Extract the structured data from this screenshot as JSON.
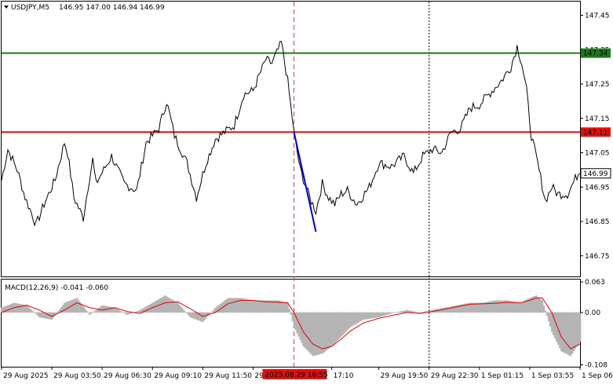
{
  "header": {
    "symbol_text": "USDJPY,M5",
    "ohlc_text": "146.95 147.00 146.94 146.99",
    "indicator_text": "MACD(12,26,9) -0.041 -0.060"
  },
  "colors": {
    "price": "#000000",
    "h_line_green": "#1a7a1a",
    "h_line_red": "#e01010",
    "v_line_red": "#d04040",
    "projection": "#0000cc",
    "histogram": "#b4b4b4",
    "signal": "#e00000",
    "current_tag_bg": "#ffffff"
  },
  "chart_data": [
    {
      "type": "line",
      "name_text": "USDJPY,M5",
      "ylim": [
        146.69,
        147.49
      ],
      "y_ticks": [
        "147.45",
        "147.35",
        "147.25",
        "147.15",
        "147.05",
        "146.95",
        "146.85",
        "146.75"
      ],
      "y_tick_values": [
        147.45,
        147.35,
        147.25,
        147.15,
        147.05,
        146.95,
        146.85,
        146.75
      ],
      "x_tick_labels": [
        "29 Aug 2025",
        "29 Aug 03:50",
        "29 Aug 06:30",
        "29 Aug 09:10",
        "29 Aug 11:50",
        "29 Aug",
        "17:10",
        "29 Aug 19:50",
        "29 Aug 22:30",
        "1 Sep 01:15",
        "1 Sep 03:55",
        "1 Sep 06:35"
      ],
      "x_tick_index": [
        0,
        32,
        64,
        96,
        128,
        160,
        210,
        240,
        272,
        304,
        336,
        368
      ],
      "cursor_index": 186,
      "cursor_label": "2025.08.29 16:55",
      "dotted_index": 272,
      "levels": [
        {
          "label": "147.34",
          "value": 147.34,
          "kind": "green"
        },
        {
          "label": "147.11",
          "value": 147.11,
          "kind": "red"
        }
      ],
      "current": {
        "label": "146.99",
        "value": 146.99
      },
      "projection": {
        "x": [
          186,
          200
        ],
        "y": [
          147.11,
          146.82
        ]
      },
      "anchor_x": [
        0,
        4,
        10,
        15,
        22,
        27,
        34,
        40,
        42,
        46,
        52,
        56,
        58,
        60,
        70,
        78,
        86,
        92,
        100,
        105,
        110,
        118,
        124,
        130,
        136,
        142,
        148,
        154,
        160,
        168,
        172,
        178,
        182,
        186,
        190,
        196,
        200,
        204,
        208,
        212,
        216,
        220,
        226,
        234,
        240,
        248,
        256,
        262,
        268,
        274,
        280,
        286,
        292,
        298,
        304,
        310,
        318,
        324,
        328,
        331,
        334,
        337,
        341,
        346,
        350,
        354,
        360,
        368
      ],
      "anchor_y": [
        146.97,
        147.06,
        147.0,
        146.92,
        146.84,
        146.9,
        146.97,
        147.08,
        147.05,
        146.92,
        146.86,
        146.98,
        147.03,
        146.96,
        147.04,
        146.96,
        146.94,
        147.08,
        147.12,
        147.2,
        147.1,
        147.02,
        146.92,
        147.02,
        147.09,
        147.11,
        147.13,
        147.22,
        147.23,
        147.32,
        147.31,
        147.37,
        147.26,
        147.11,
        147.0,
        146.92,
        146.88,
        146.96,
        146.92,
        146.9,
        146.93,
        146.94,
        146.9,
        146.95,
        147.02,
        147.01,
        147.04,
        146.99,
        147.04,
        147.06,
        147.05,
        147.11,
        147.12,
        147.18,
        147.19,
        147.22,
        147.26,
        147.3,
        147.36,
        147.31,
        147.23,
        147.1,
        147.02,
        146.91,
        146.95,
        146.93,
        146.93,
        147.0
      ],
      "index_count": 369
    },
    {
      "type": "bar",
      "name_text": "MACD(12,26,9)",
      "ylim": [
        -0.112,
        0.068
      ],
      "y_ticks": [
        "0.063",
        "0.00",
        "-0.108"
      ],
      "y_tick_values": [
        0.063,
        0.0,
        -0.108
      ],
      "anchor_x": [
        0,
        8,
        16,
        24,
        32,
        40,
        48,
        56,
        64,
        72,
        80,
        88,
        96,
        104,
        112,
        120,
        128,
        136,
        144,
        152,
        160,
        168,
        176,
        182,
        186,
        192,
        198,
        204,
        210,
        216,
        222,
        230,
        240,
        250,
        258,
        266,
        274,
        282,
        290,
        298,
        306,
        314,
        322,
        330,
        336,
        340,
        344,
        350,
        356,
        362,
        368
      ],
      "histogram": [
        0.01,
        0.02,
        0.015,
        -0.01,
        -0.015,
        0.02,
        0.03,
        -0.005,
        0.015,
        0.01,
        -0.005,
        0.005,
        0.02,
        0.035,
        0.02,
        -0.01,
        -0.02,
        0.01,
        0.03,
        0.03,
        0.025,
        0.025,
        0.025,
        0.02,
        -0.03,
        -0.07,
        -0.09,
        -0.085,
        -0.07,
        -0.05,
        -0.03,
        -0.015,
        -0.01,
        0.0,
        0.005,
        0.0,
        0.005,
        0.01,
        0.015,
        0.02,
        0.02,
        0.025,
        0.025,
        0.02,
        0.03,
        0.035,
        0.025,
        -0.04,
        -0.08,
        -0.09,
        -0.06
      ],
      "signal": [
        0.0,
        0.01,
        0.015,
        0.005,
        -0.008,
        0.005,
        0.02,
        0.01,
        0.005,
        0.01,
        0.002,
        -0.002,
        0.01,
        0.02,
        0.022,
        0.008,
        -0.008,
        0.0,
        0.018,
        0.025,
        0.025,
        0.022,
        0.021,
        0.02,
        0.0,
        -0.04,
        -0.065,
        -0.075,
        -0.07,
        -0.055,
        -0.038,
        -0.022,
        -0.012,
        -0.005,
        0.0,
        -0.002,
        0.002,
        0.007,
        0.012,
        0.017,
        0.018,
        0.019,
        0.021,
        0.02,
        0.025,
        0.03,
        0.03,
        0.0,
        -0.05,
        -0.075,
        -0.065
      ]
    }
  ]
}
